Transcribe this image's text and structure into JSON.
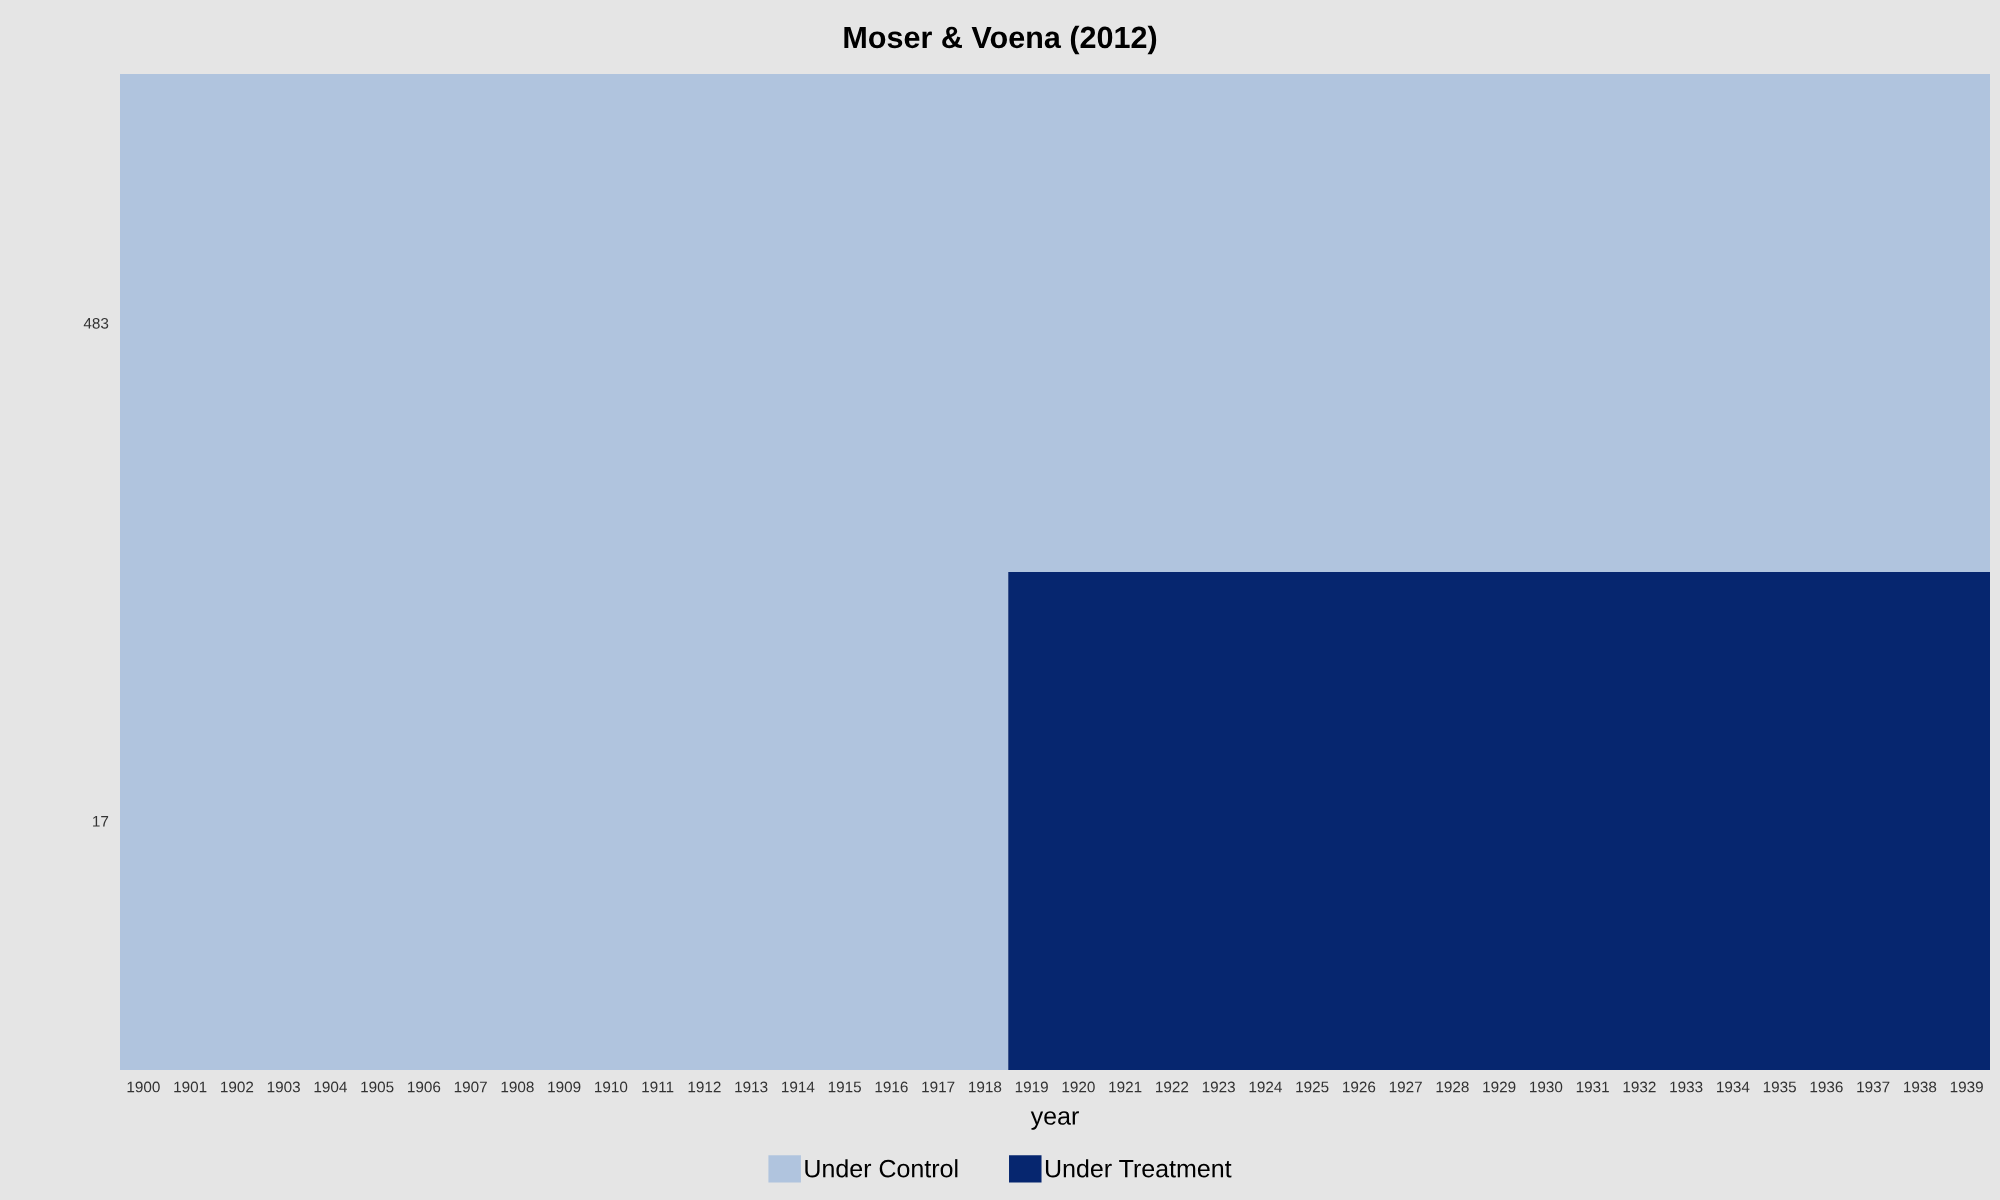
{
  "chart_data": {
    "type": "bar",
    "orientation": "horizontal",
    "title": "Moser & Voena (2012)",
    "xlabel": "year",
    "categories": [
      "483",
      "17"
    ],
    "series": [
      {
        "name": "Under Control",
        "color": "#b0c4de",
        "values": [
          40,
          19
        ],
        "base": [
          1899.5,
          1899.5
        ]
      },
      {
        "name": "Under Treatment",
        "color": "#06266f",
        "values": [
          null,
          21
        ],
        "base": [
          null,
          1918.5
        ]
      }
    ],
    "xlim": [
      1899.5,
      1939.5
    ],
    "xticks": [
      1900,
      1901,
      1902,
      1903,
      1904,
      1905,
      1906,
      1907,
      1908,
      1909,
      1910,
      1911,
      1912,
      1913,
      1914,
      1915,
      1916,
      1917,
      1918,
      1919,
      1920,
      1921,
      1922,
      1923,
      1924,
      1925,
      1926,
      1927,
      1928,
      1929,
      1930,
      1931,
      1932,
      1933,
      1934,
      1935,
      1936,
      1937,
      1938,
      1939
    ],
    "legend": "bottom",
    "grid": false
  }
}
